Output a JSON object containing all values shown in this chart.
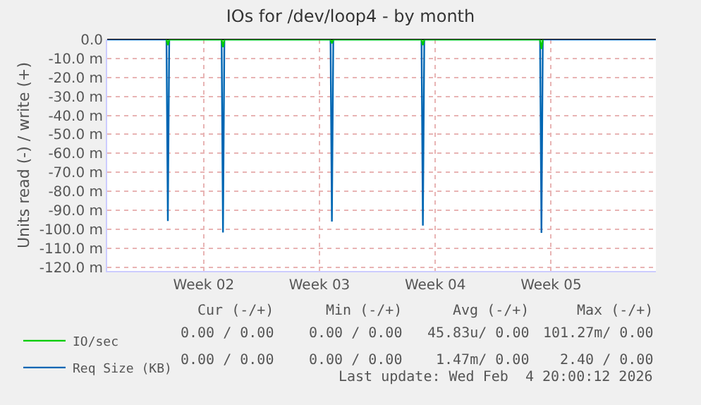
{
  "chart_data": {
    "type": "line",
    "title": "IOs for /dev/loop4 - by month",
    "ylabel": "Units read (-) / write (+)",
    "xlim": [
      "2026-01-02T16:00",
      "2026-02-04T20:00"
    ],
    "xticks": [
      {
        "value": "2026-01-08T12:00",
        "label": "Week 02"
      },
      {
        "value": "2026-01-15T12:00",
        "label": "Week 03"
      },
      {
        "value": "2026-01-22T12:00",
        "label": "Week 04"
      },
      {
        "value": "2026-01-29T12:00",
        "label": "Week 05"
      }
    ],
    "ylim": [
      -122,
      0
    ],
    "yticks": [
      {
        "value": 0,
        "label": "0.0"
      },
      {
        "value": -10,
        "label": "-10.0 m"
      },
      {
        "value": -20,
        "label": "-20.0 m"
      },
      {
        "value": -30,
        "label": "-30.0 m"
      },
      {
        "value": -40,
        "label": "-40.0 m"
      },
      {
        "value": -50,
        "label": "-50.0 m"
      },
      {
        "value": -60,
        "label": "-60.0 m"
      },
      {
        "value": -70,
        "label": "-70.0 m"
      },
      {
        "value": -80,
        "label": "-80.0 m"
      },
      {
        "value": -90,
        "label": "-90.0 m"
      },
      {
        "value": -100,
        "label": "-100.0 m"
      },
      {
        "value": -110,
        "label": "-110.0 m"
      },
      {
        "value": -120,
        "label": "-120.0 m"
      }
    ],
    "series": [
      {
        "name": "IO/sec",
        "color": "#00cc00",
        "x": [
          "2026-01-06T06:00",
          "2026-01-06T08:00",
          "2026-01-06T10:00",
          "2026-01-09T14:00",
          "2026-01-09T16:00",
          "2026-01-09T18:00",
          "2026-01-16T04:00",
          "2026-01-16T06:00",
          "2026-01-16T08:00",
          "2026-01-21T16:00",
          "2026-01-21T18:00",
          "2026-01-21T20:00",
          "2026-01-28T20:00",
          "2026-01-28T22:00",
          "2026-01-29T00:00"
        ],
        "values": [
          0,
          -3,
          0,
          0,
          -4,
          0,
          0,
          -2,
          0,
          0,
          -3,
          0,
          0,
          -5,
          0
        ]
      },
      {
        "name": "Req Size (KB)",
        "color": "#0066b3",
        "x": [
          "2026-01-02T16:00",
          "2026-01-06T06:00",
          "2026-01-06T08:00",
          "2026-01-06T10:00",
          "2026-01-09T14:00",
          "2026-01-09T16:00",
          "2026-01-09T18:00",
          "2026-01-16T04:00",
          "2026-01-16T06:00",
          "2026-01-16T08:00",
          "2026-01-21T16:00",
          "2026-01-21T18:00",
          "2026-01-21T20:00",
          "2026-01-28T20:00",
          "2026-01-28T22:00",
          "2026-01-29T00:00",
          "2026-02-04T20:00"
        ],
        "values": [
          0,
          0,
          -95.7,
          0,
          0,
          -101.7,
          0,
          0,
          -96,
          0,
          0,
          -98.1,
          0,
          0,
          -101.9,
          0,
          0
        ]
      }
    ],
    "grid": true,
    "legend": "bottom left",
    "marker": "none",
    "line_style": "solid",
    "annotations": [
      "Cur (-/+)",
      "Min (-/+)",
      "Avg (-/+)",
      "Max (-/+)",
      "0.00 / 0.00",
      "0.00 / 0.00",
      "45.83u/ 0.00",
      "101.27m/ 0.00",
      "0.00 / 0.00",
      "0.00 / 0.00",
      "1.47m/ 0.00",
      "2.40 / 0.00",
      "Last update: Wed Feb  4 20:00:12 2026"
    ]
  }
}
